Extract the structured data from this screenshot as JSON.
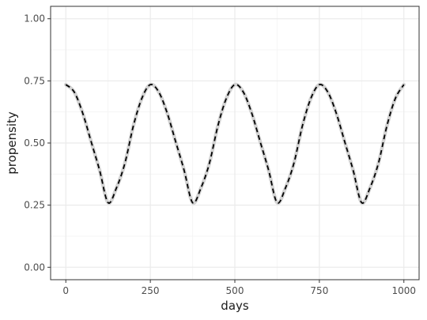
{
  "chart_data": {
    "type": "line",
    "xlabel": "days",
    "ylabel": "propensity",
    "xlim": [
      -45,
      1045
    ],
    "ylim": [
      -0.05,
      1.05
    ],
    "x_ticks": [
      0,
      250,
      500,
      750,
      1000
    ],
    "x_tick_labels": [
      "0",
      "250",
      "500",
      "750",
      "1000"
    ],
    "y_ticks": [
      0,
      0.25,
      0.5,
      0.75,
      1.0
    ],
    "y_tick_labels": [
      "0.00",
      "0.25",
      "0.50",
      "0.75",
      "1.00"
    ],
    "grid": true,
    "legend": "none",
    "series": [
      {
        "style": "solid-wide",
        "color": "#d3d3d3",
        "x": [
          0,
          25,
          50,
          75,
          100,
          125,
          150,
          175,
          200,
          225,
          250,
          275,
          300,
          325,
          350,
          375,
          400,
          425,
          450,
          475,
          500,
          525,
          550,
          575,
          600,
          625,
          650,
          675,
          700,
          725,
          750,
          775,
          800,
          825,
          850,
          875,
          900,
          925,
          950,
          975,
          1000
        ],
        "y": [
          0.735,
          0.705,
          0.62,
          0.505,
          0.39,
          0.26,
          0.32,
          0.42,
          0.57,
          0.68,
          0.735,
          0.705,
          0.62,
          0.505,
          0.39,
          0.26,
          0.32,
          0.42,
          0.57,
          0.68,
          0.735,
          0.705,
          0.62,
          0.505,
          0.39,
          0.26,
          0.32,
          0.42,
          0.57,
          0.68,
          0.735,
          0.705,
          0.62,
          0.505,
          0.39,
          0.26,
          0.32,
          0.42,
          0.57,
          0.68,
          0.735
        ]
      },
      {
        "style": "dashed",
        "color": "#000000",
        "x": [
          0,
          25,
          50,
          75,
          100,
          125,
          150,
          175,
          200,
          225,
          250,
          275,
          300,
          325,
          350,
          375,
          400,
          425,
          450,
          475,
          500,
          525,
          550,
          575,
          600,
          625,
          650,
          675,
          700,
          725,
          750,
          775,
          800,
          825,
          850,
          875,
          900,
          925,
          950,
          975,
          1000
        ],
        "y": [
          0.735,
          0.705,
          0.62,
          0.505,
          0.39,
          0.26,
          0.32,
          0.42,
          0.57,
          0.68,
          0.735,
          0.705,
          0.62,
          0.505,
          0.39,
          0.26,
          0.32,
          0.42,
          0.57,
          0.68,
          0.735,
          0.705,
          0.62,
          0.505,
          0.39,
          0.26,
          0.32,
          0.42,
          0.57,
          0.68,
          0.735,
          0.705,
          0.62,
          0.505,
          0.39,
          0.26,
          0.32,
          0.42,
          0.57,
          0.68,
          0.735
        ]
      }
    ],
    "colors": {
      "panel_border": "#333333",
      "grid_major": "#ebebeb",
      "grid_minor": "#f5f5f5"
    }
  }
}
